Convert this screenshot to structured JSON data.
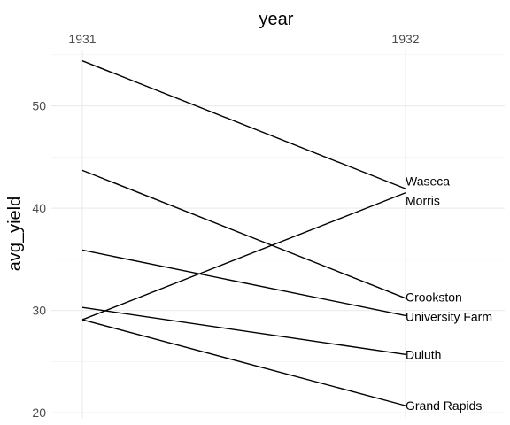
{
  "chart_data": {
    "type": "line",
    "xlabel": "year",
    "ylabel": "avg_yield",
    "x": [
      "1931",
      "1932"
    ],
    "ylim": [
      19.5,
      55.5
    ],
    "y_ticks": [
      20,
      30,
      40,
      50
    ],
    "x_axis_position": "top",
    "grid": true,
    "series": [
      {
        "name": "Waseca",
        "values": [
          54.4,
          41.9
        ]
      },
      {
        "name": "Morris",
        "values": [
          29.1,
          41.5
        ]
      },
      {
        "name": "Crookston",
        "values": [
          43.7,
          31.2
        ]
      },
      {
        "name": "University Farm",
        "values": [
          35.9,
          29.5
        ]
      },
      {
        "name": "Duluth",
        "values": [
          30.3,
          25.7
        ]
      },
      {
        "name": "Grand Rapids",
        "values": [
          29.1,
          20.7
        ]
      }
    ]
  }
}
